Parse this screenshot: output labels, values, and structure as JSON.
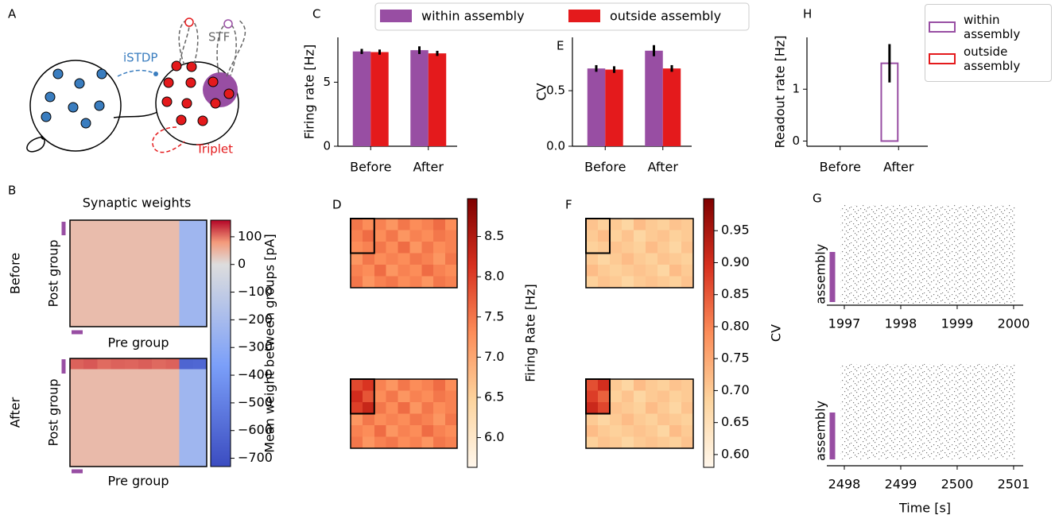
{
  "diagram": {
    "panel": "A",
    "labels": {
      "istdp": "iSTDP",
      "stf": "STF",
      "triplet": "Triplet"
    }
  },
  "chart_data": [
    {
      "panel": "C",
      "type": "bar",
      "categories": [
        "Before",
        "After"
      ],
      "ylabel": "Firing rate [Hz]",
      "ylim": [
        0,
        8.5
      ],
      "yticks": [
        0,
        5
      ],
      "legend": "top",
      "series": [
        {
          "name": "within assembly",
          "color": "#984ea3",
          "values": [
            7.4,
            7.5
          ],
          "errors": [
            0.2,
            0.3
          ]
        },
        {
          "name": "outside assembly",
          "color": "#e41a1c",
          "values": [
            7.35,
            7.25
          ],
          "errors": [
            0.2,
            0.2
          ]
        }
      ]
    },
    {
      "panel": "E",
      "type": "bar",
      "categories": [
        "Before",
        "After"
      ],
      "ylabel": "CV",
      "ylim": [
        0,
        0.98
      ],
      "yticks": [
        {
          "value": 0,
          "label": "0.0"
        },
        0.5
      ],
      "series": [
        {
          "color": "#984ea3",
          "values": [
            0.7,
            0.86
          ],
          "errors": [
            0.03,
            0.05
          ]
        },
        {
          "color": "#e41a1c",
          "values": [
            0.69,
            0.7
          ],
          "errors": [
            0.03,
            0.03
          ]
        }
      ]
    },
    {
      "panel": "H",
      "type": "bar",
      "style": "outline",
      "categories": [
        "Before",
        "After"
      ],
      "ylabel": "Readout rate [Hz]",
      "ylim": [
        -0.1,
        2.0
      ],
      "yticks": [
        0,
        1
      ],
      "legend": "upper right",
      "series": [
        {
          "name": "within assembly",
          "color": "#984ea3",
          "values": [
            0,
            1.5
          ],
          "errors": [
            0,
            0.37
          ]
        },
        {
          "name": "outside assembly",
          "color": "#e41a1c",
          "values": [
            0,
            0
          ],
          "errors": [
            0,
            0
          ]
        }
      ]
    },
    {
      "panel": "B",
      "type": "heatmap",
      "title": "Synaptic weights",
      "row_labels": [
        "Before",
        "After"
      ],
      "xlabel": "Pre group",
      "ylabel": "Post group",
      "cbar_label": "Mean weight between groups [pA]",
      "clim": [
        -730,
        160
      ],
      "vcenter": 0,
      "cmap": [
        "#3b4cc0",
        "#7b9ff9",
        "#dddddd",
        "#f49a7b",
        "#b40426"
      ],
      "cbar_ticks": [
        100,
        0,
        {
          "value": -100,
          "label": "−100"
        },
        {
          "value": -200,
          "label": "−200"
        },
        {
          "value": -300,
          "label": "−300"
        },
        {
          "value": -400,
          "label": "−400"
        },
        {
          "value": -500,
          "label": "−500"
        },
        {
          "value": -600,
          "label": "−600"
        },
        {
          "value": -700,
          "label": "−700"
        }
      ],
      "matrices": [
        [
          [
            40,
            40,
            40,
            40,
            40,
            40,
            40,
            40,
            -230,
            -230
          ],
          [
            40,
            40,
            40,
            40,
            40,
            40,
            40,
            40,
            -230,
            -230
          ],
          [
            40,
            40,
            40,
            40,
            40,
            40,
            40,
            40,
            -230,
            -230
          ],
          [
            40,
            40,
            40,
            40,
            40,
            40,
            40,
            40,
            -230,
            -230
          ],
          [
            40,
            40,
            40,
            40,
            40,
            40,
            40,
            40,
            -230,
            -230
          ],
          [
            40,
            40,
            40,
            40,
            40,
            40,
            40,
            40,
            -230,
            -230
          ],
          [
            40,
            40,
            40,
            40,
            40,
            40,
            40,
            40,
            -230,
            -230
          ],
          [
            40,
            40,
            40,
            40,
            40,
            40,
            40,
            40,
            -230,
            -230
          ],
          [
            40,
            40,
            40,
            40,
            40,
            40,
            40,
            40,
            -230,
            -230
          ],
          [
            40,
            40,
            40,
            40,
            40,
            40,
            40,
            40,
            -230,
            -230
          ]
        ],
        [
          [
            110,
            115,
            105,
            110,
            108,
            112,
            106,
            110,
            -620,
            -610
          ],
          [
            42,
            42,
            42,
            42,
            42,
            42,
            42,
            42,
            -230,
            -230
          ],
          [
            42,
            42,
            42,
            42,
            42,
            42,
            42,
            42,
            -230,
            -230
          ],
          [
            42,
            42,
            42,
            42,
            42,
            42,
            42,
            42,
            -230,
            -230
          ],
          [
            42,
            42,
            42,
            42,
            42,
            42,
            42,
            42,
            -230,
            -230
          ],
          [
            42,
            42,
            42,
            42,
            42,
            42,
            42,
            42,
            -230,
            -230
          ],
          [
            42,
            42,
            42,
            42,
            42,
            42,
            42,
            42,
            -230,
            -230
          ],
          [
            42,
            42,
            42,
            42,
            42,
            42,
            42,
            42,
            -230,
            -230
          ],
          [
            42,
            42,
            42,
            42,
            42,
            42,
            42,
            42,
            -230,
            -230
          ],
          [
            42,
            42,
            42,
            42,
            42,
            42,
            42,
            42,
            -230,
            -230
          ]
        ]
      ]
    },
    {
      "panel": "D",
      "type": "heatmap",
      "cbar_label": "Firing Rate [Hz]",
      "clim": [
        5.63,
        8.97
      ],
      "cmap": [
        "#fff7ec",
        "#fdd49e",
        "#fc8d59",
        "#d7301f",
        "#7f0000"
      ],
      "cbar_ticks": [
        {
          "value": 6,
          "label": "6.0"
        },
        6.5,
        {
          "value": 7,
          "label": "7.0"
        },
        7.5,
        {
          "value": 8,
          "label": "8.0"
        },
        8.5
      ],
      "matrices": [
        [
          [
            7.5,
            7.3,
            7.4,
            7.2,
            7.5,
            7.3,
            7.4,
            7.6,
            7.3
          ],
          [
            7.4,
            7.6,
            7.3,
            7.5,
            7.2,
            7.4,
            7.3,
            7.5,
            7.4
          ],
          [
            7.3,
            7.4,
            7.5,
            7.3,
            7.6,
            7.2,
            7.5,
            7.3,
            7.4
          ],
          [
            7.2,
            7.5,
            7.3,
            7.4,
            7.3,
            7.5,
            7.4,
            7.2,
            7.5
          ],
          [
            7.4,
            7.3,
            7.6,
            7.2,
            7.4,
            7.3,
            7.6,
            7.4,
            7.3
          ],
          [
            7.5,
            7.2,
            7.4,
            7.5,
            7.3,
            7.4,
            7.2,
            7.5,
            7.4
          ]
        ],
        [
          [
            7.9,
            8.1,
            7.4,
            7.2,
            7.5,
            7.3,
            7.4,
            7.6,
            7.3
          ],
          [
            8.2,
            7.8,
            7.3,
            7.5,
            7.2,
            7.4,
            7.3,
            7.5,
            7.4
          ],
          [
            8.0,
            8.3,
            7.5,
            7.3,
            7.6,
            7.2,
            7.5,
            7.3,
            7.4
          ],
          [
            7.2,
            7.5,
            7.3,
            7.4,
            7.3,
            7.5,
            7.4,
            7.2,
            7.5
          ],
          [
            7.4,
            7.3,
            7.6,
            7.2,
            7.4,
            7.3,
            7.6,
            7.4,
            7.3
          ],
          [
            7.5,
            7.2,
            7.4,
            7.5,
            7.3,
            7.4,
            7.2,
            7.5,
            7.4
          ]
        ]
      ]
    },
    {
      "panel": "F",
      "type": "heatmap",
      "cbar_label": "CV",
      "clim": [
        0.58,
        1.0
      ],
      "cmap": [
        "#fff7ec",
        "#fdd49e",
        "#fc8d59",
        "#d7301f",
        "#7f0000"
      ],
      "cbar_ticks": [
        {
          "value": 0.6,
          "label": "0.60"
        },
        0.65,
        {
          "value": 0.7,
          "label": "0.70"
        },
        0.75,
        {
          "value": 0.8,
          "label": "0.80"
        },
        0.85,
        {
          "value": 0.9,
          "label": "0.90"
        },
        0.95
      ],
      "matrices": [
        [
          [
            0.71,
            0.69,
            0.7,
            0.68,
            0.72,
            0.7,
            0.69,
            0.71,
            0.7
          ],
          [
            0.7,
            0.72,
            0.69,
            0.71,
            0.68,
            0.7,
            0.71,
            0.69,
            0.7
          ],
          [
            0.69,
            0.7,
            0.71,
            0.7,
            0.69,
            0.72,
            0.7,
            0.68,
            0.71
          ],
          [
            0.7,
            0.68,
            0.7,
            0.72,
            0.7,
            0.69,
            0.71,
            0.7,
            0.69
          ],
          [
            0.72,
            0.7,
            0.69,
            0.7,
            0.71,
            0.7,
            0.68,
            0.72,
            0.7
          ],
          [
            0.69,
            0.71,
            0.7,
            0.68,
            0.7,
            0.71,
            0.7,
            0.69,
            0.71
          ]
        ],
        [
          [
            0.86,
            0.9,
            0.7,
            0.68,
            0.72,
            0.7,
            0.69,
            0.71,
            0.7
          ],
          [
            0.88,
            0.84,
            0.69,
            0.71,
            0.68,
            0.7,
            0.71,
            0.69,
            0.7
          ],
          [
            0.91,
            0.87,
            0.71,
            0.7,
            0.69,
            0.72,
            0.7,
            0.68,
            0.71
          ],
          [
            0.7,
            0.68,
            0.7,
            0.72,
            0.7,
            0.69,
            0.71,
            0.7,
            0.69
          ],
          [
            0.72,
            0.7,
            0.69,
            0.7,
            0.71,
            0.7,
            0.68,
            0.72,
            0.7
          ],
          [
            0.69,
            0.71,
            0.7,
            0.68,
            0.7,
            0.71,
            0.7,
            0.69,
            0.71
          ]
        ]
      ]
    },
    {
      "panel": "G",
      "type": "raster",
      "ylabel": "assembly",
      "xlim": [
        1996.69,
        2000.17
      ],
      "xticks": [
        1997,
        1998,
        1999,
        2000
      ]
    },
    {
      "type": "raster",
      "ylabel": "assembly",
      "xlabel": "Time [s]",
      "xlim": [
        2497.69,
        2501.17
      ],
      "xticks": [
        2498,
        2499,
        2500,
        2501
      ]
    }
  ]
}
